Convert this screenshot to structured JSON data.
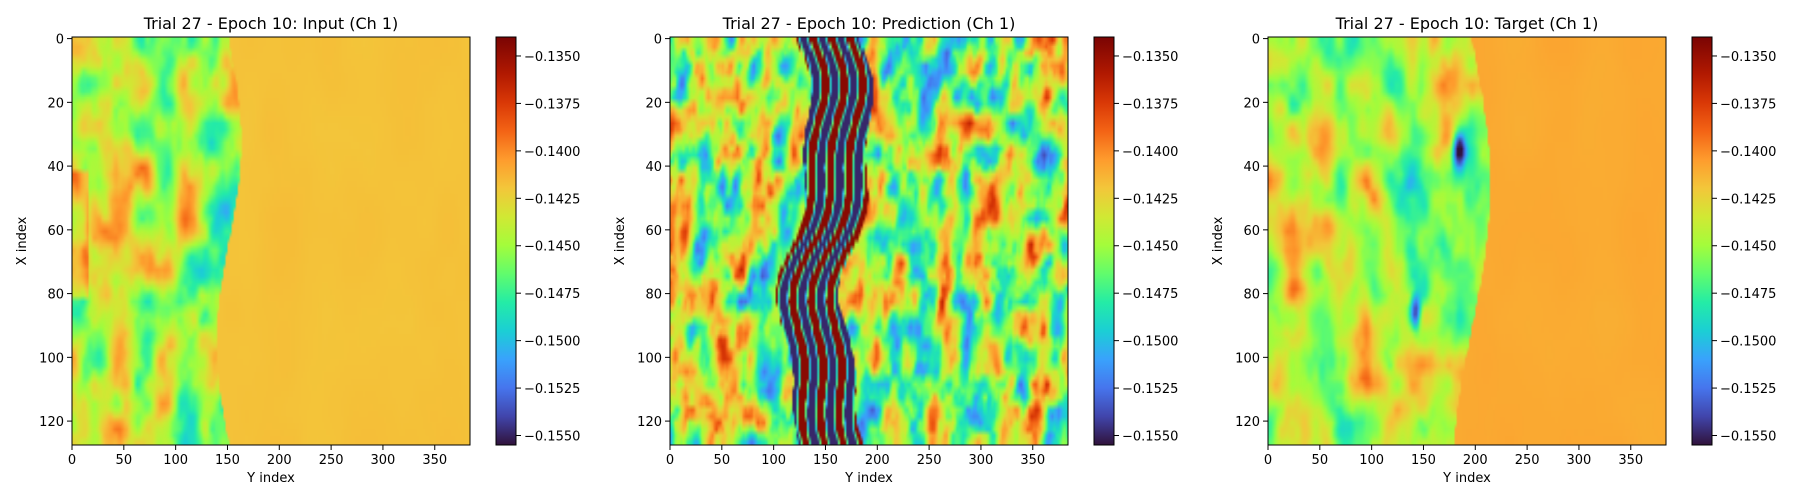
{
  "chart_data": [
    {
      "type": "heatmap",
      "title": "Trial 27 - Epoch 10: Input (Ch 1)",
      "xlabel": "Y index",
      "ylabel": "X index",
      "xlim": [
        0,
        383
      ],
      "ylim": [
        127,
        0
      ],
      "xticks": [
        "0",
        "50",
        "100",
        "150",
        "200",
        "250",
        "300",
        "350"
      ],
      "yticks": [
        "0",
        "20",
        "40",
        "60",
        "80",
        "100",
        "120"
      ],
      "colormap": "turbo",
      "clim": [
        -0.1555,
        -0.134
      ],
      "colorbar_ticks": [
        "−0.1350",
        "−0.1375",
        "−0.1400",
        "−0.1425",
        "−0.1450",
        "−0.1475",
        "−0.1500",
        "−0.1525",
        "−0.1550"
      ]
    },
    {
      "type": "heatmap",
      "title": "Trial 27 - Epoch 10: Prediction (Ch 1)",
      "xlabel": "Y index",
      "ylabel": "X index",
      "xlim": [
        0,
        383
      ],
      "ylim": [
        127,
        0
      ],
      "xticks": [
        "0",
        "50",
        "100",
        "150",
        "200",
        "250",
        "300",
        "350"
      ],
      "yticks": [
        "0",
        "20",
        "40",
        "60",
        "80",
        "100",
        "120"
      ],
      "colormap": "turbo",
      "clim": [
        -0.1555,
        -0.134
      ],
      "colorbar_ticks": [
        "−0.1350",
        "−0.1375",
        "−0.1400",
        "−0.1425",
        "−0.1450",
        "−0.1475",
        "−0.1500",
        "−0.1525",
        "−0.1550"
      ]
    },
    {
      "type": "heatmap",
      "title": "Trial 27 - Epoch 10: Target (Ch 1)",
      "xlabel": "Y index",
      "ylabel": "X index",
      "xlim": [
        0,
        383
      ],
      "ylim": [
        127,
        0
      ],
      "xticks": [
        "0",
        "50",
        "100",
        "150",
        "200",
        "250",
        "300",
        "350"
      ],
      "yticks": [
        "0",
        "20",
        "40",
        "60",
        "80",
        "100",
        "120"
      ],
      "colormap": "turbo",
      "clim": [
        -0.1555,
        -0.134
      ],
      "colorbar_ticks": [
        "−0.1350",
        "−0.1375",
        "−0.1400",
        "−0.1425",
        "−0.1450",
        "−0.1475",
        "−0.1500",
        "−0.1525",
        "−0.1550"
      ]
    }
  ]
}
